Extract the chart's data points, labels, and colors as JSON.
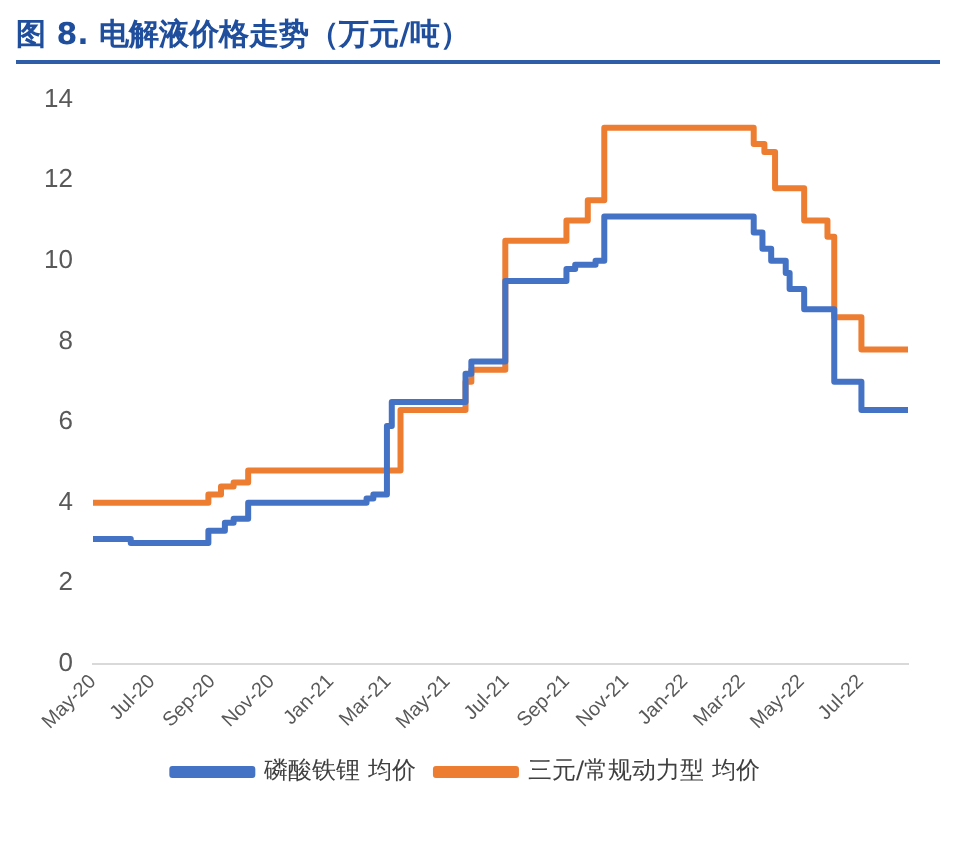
{
  "chart_data": {
    "type": "step",
    "title": "图 8. 电解液价格走势（万元/吨）",
    "series": [
      {
        "name": "磷酸铁锂 均价",
        "color": "#4472c4",
        "x": [
          "2020-05-01",
          "2020-06-09",
          "2020-08-28",
          "2020-09-14",
          "2020-09-23",
          "2020-10-08",
          "2021-02-07",
          "2021-02-14",
          "2021-02-28",
          "2021-03-05",
          "2021-05-20",
          "2021-05-26",
          "2021-06-30",
          "2021-09-01",
          "2021-09-10",
          "2021-10-01",
          "2021-10-10",
          "2022-03-13",
          "2022-03-22",
          "2022-03-31",
          "2022-04-15",
          "2022-04-19",
          "2022-05-04",
          "2022-06-04",
          "2022-07-02",
          "2022-08-19"
        ],
        "values": [
          3.1,
          3.0,
          3.3,
          3.5,
          3.6,
          4.0,
          4.1,
          4.2,
          5.9,
          6.5,
          7.2,
          7.5,
          9.5,
          9.8,
          9.9,
          10.0,
          11.1,
          10.7,
          10.3,
          10.0,
          9.7,
          9.3,
          8.8,
          7.0,
          6.3,
          6.3
        ]
      },
      {
        "name": "三元/常规动力型 均价",
        "color": "#ed7d31",
        "x": [
          "2020-05-01",
          "2020-08-28",
          "2020-09-10",
          "2020-09-23",
          "2020-10-08",
          "2021-03-14",
          "2021-05-20",
          "2021-05-26",
          "2021-06-30",
          "2021-09-01",
          "2021-09-23",
          "2021-10-10",
          "2022-03-13",
          "2022-03-24",
          "2022-04-04",
          "2022-05-04",
          "2022-05-28",
          "2022-06-04",
          "2022-07-02",
          "2022-08-19"
        ],
        "values": [
          4.0,
          4.2,
          4.4,
          4.5,
          4.8,
          6.3,
          7.0,
          7.3,
          10.5,
          11.0,
          11.5,
          13.3,
          12.9,
          12.7,
          11.8,
          11.0,
          10.6,
          8.6,
          7.8,
          7.8
        ]
      }
    ],
    "xlim": [
      "2020-05-01",
      "2022-08-19"
    ],
    "xticks": [
      {
        "value": "2020-05-01",
        "label": "May-20"
      },
      {
        "value": "2020-07-01",
        "label": "Jul-20"
      },
      {
        "value": "2020-09-01",
        "label": "Sep-20"
      },
      {
        "value": "2020-11-01",
        "label": "Nov-20"
      },
      {
        "value": "2021-01-01",
        "label": "Jan-21"
      },
      {
        "value": "2021-03-01",
        "label": "Mar-21"
      },
      {
        "value": "2021-05-01",
        "label": "May-21"
      },
      {
        "value": "2021-07-01",
        "label": "Jul-21"
      },
      {
        "value": "2021-09-01",
        "label": "Sep-21"
      },
      {
        "value": "2021-11-01",
        "label": "Nov-21"
      },
      {
        "value": "2022-01-01",
        "label": "Jan-22"
      },
      {
        "value": "2022-03-01",
        "label": "Mar-22"
      },
      {
        "value": "2022-05-01",
        "label": "May-22"
      },
      {
        "value": "2022-07-01",
        "label": "Jul-22"
      }
    ],
    "ylim": [
      0,
      14
    ],
    "yticks": [
      0,
      2,
      4,
      6,
      8,
      10,
      12,
      14
    ],
    "grid": false,
    "legend": "bottom",
    "marker": "none",
    "line_style": "solid"
  }
}
